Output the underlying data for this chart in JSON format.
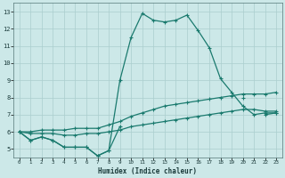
{
  "xlabel": "Humidex (Indice chaleur)",
  "x": [
    0,
    1,
    2,
    3,
    4,
    5,
    6,
    7,
    8,
    9,
    10,
    11,
    12,
    13,
    14,
    15,
    16,
    17,
    18,
    19,
    20,
    21,
    22,
    23
  ],
  "line_max": [
    6.0,
    5.5,
    5.7,
    5.5,
    5.1,
    5.1,
    5.1,
    4.6,
    4.9,
    9.0,
    11.5,
    12.9,
    12.5,
    12.4,
    12.5,
    12.8,
    11.9,
    10.9,
    9.1,
    8.3,
    7.5,
    7.0,
    7.1,
    7.1
  ],
  "line_upper": [
    6.0,
    6.0,
    6.1,
    6.1,
    6.1,
    6.2,
    6.2,
    6.2,
    6.4,
    6.6,
    6.9,
    7.1,
    7.3,
    7.5,
    7.6,
    7.7,
    7.8,
    7.9,
    8.0,
    8.1,
    8.2,
    8.2,
    8.2,
    8.3
  ],
  "line_lower": [
    6.0,
    5.9,
    5.9,
    5.9,
    5.8,
    5.8,
    5.9,
    5.9,
    6.0,
    6.1,
    6.3,
    6.4,
    6.5,
    6.6,
    6.7,
    6.8,
    6.9,
    7.0,
    7.1,
    7.2,
    7.3,
    7.3,
    7.2,
    7.2
  ],
  "line_min": [
    6.0,
    5.5,
    5.7,
    5.5,
    5.1,
    5.1,
    5.1,
    4.6,
    4.9,
    6.3,
    null,
    null,
    null,
    null,
    null,
    null,
    null,
    null,
    null,
    null,
    8.0,
    null,
    7.0,
    7.1
  ],
  "color": "#1a7a6e",
  "bg_color": "#cce8e8",
  "grid_color": "#aacece",
  "xlim": [
    0,
    23
  ],
  "ylim": [
    4.5,
    13.5
  ],
  "yticks": [
    5,
    6,
    7,
    8,
    9,
    10,
    11,
    12,
    13
  ],
  "xticks": [
    0,
    1,
    2,
    3,
    4,
    5,
    6,
    7,
    8,
    9,
    10,
    11,
    12,
    13,
    14,
    15,
    16,
    17,
    18,
    19,
    20,
    21,
    22,
    23
  ],
  "figsize": [
    3.2,
    2.0
  ],
  "dpi": 100
}
